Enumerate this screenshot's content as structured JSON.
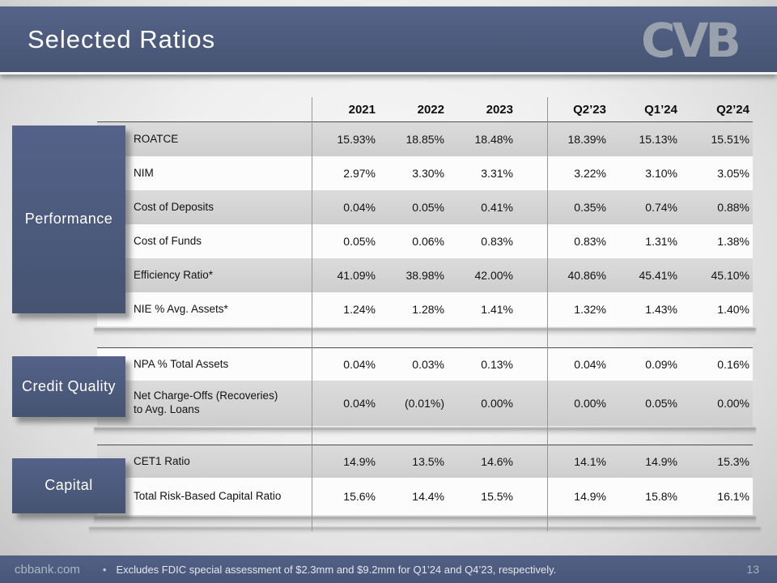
{
  "slide": {
    "title": "Selected Ratios",
    "page_number": "13",
    "site": "cbbank.com",
    "footnote_bullet": "•",
    "footnote": "Excludes FDIC special assessment of $2.3mm and $9.2mm for Q1’24 and Q4’23, respectively."
  },
  "logo": {
    "text": "CVB"
  },
  "table": {
    "columns": [
      "2021",
      "2022",
      "2023",
      "Q2’23",
      "Q1’24",
      "Q2’24"
    ],
    "sections": [
      {
        "label": "Performance",
        "rows": [
          {
            "label": "ROATCE",
            "values": [
              "15.93%",
              "18.85%",
              "18.48%",
              "18.39%",
              "15.13%",
              "15.51%"
            ]
          },
          {
            "label": "NIM",
            "values": [
              "2.97%",
              "3.30%",
              "3.31%",
              "3.22%",
              "3.10%",
              "3.05%"
            ]
          },
          {
            "label": "Cost of Deposits",
            "values": [
              "0.04%",
              "0.05%",
              "0.41%",
              "0.35%",
              "0.74%",
              "0.88%"
            ]
          },
          {
            "label": "Cost of Funds",
            "values": [
              "0.05%",
              "0.06%",
              "0.83%",
              "0.83%",
              "1.31%",
              "1.38%"
            ]
          },
          {
            "label": "Efficiency Ratio*",
            "values": [
              "41.09%",
              "38.98%",
              "42.00%",
              "40.86%",
              "45.41%",
              "45.10%"
            ]
          },
          {
            "label": "NIE % Avg. Assets*",
            "values": [
              "1.24%",
              "1.28%",
              "1.41%",
              "1.32%",
              "1.43%",
              "1.40%"
            ]
          }
        ]
      },
      {
        "label": "Credit Quality",
        "rows": [
          {
            "label": "NPA % Total Assets",
            "values": [
              "0.04%",
              "0.03%",
              "0.13%",
              "0.04%",
              "0.09%",
              "0.16%"
            ]
          },
          {
            "label": "Net Charge-Offs (Recoveries) to Avg. Loans",
            "values": [
              "0.04%",
              "(0.01%)",
              "0.00%",
              "0.00%",
              "0.05%",
              "0.00%"
            ]
          }
        ]
      },
      {
        "label": "Capital",
        "rows": [
          {
            "label": "CET1 Ratio",
            "values": [
              "14.9%",
              "13.5%",
              "14.6%",
              "14.1%",
              "14.9%",
              "15.3%"
            ]
          },
          {
            "label": "Total Risk-Based Capital Ratio",
            "values": [
              "15.6%",
              "14.4%",
              "15.5%",
              "14.9%",
              "15.8%",
              "16.1%"
            ]
          }
        ]
      }
    ]
  },
  "colors": {
    "banner": "#4c5a7c",
    "section_box": "#4b597b",
    "row_shade": "#d2d2d2"
  }
}
